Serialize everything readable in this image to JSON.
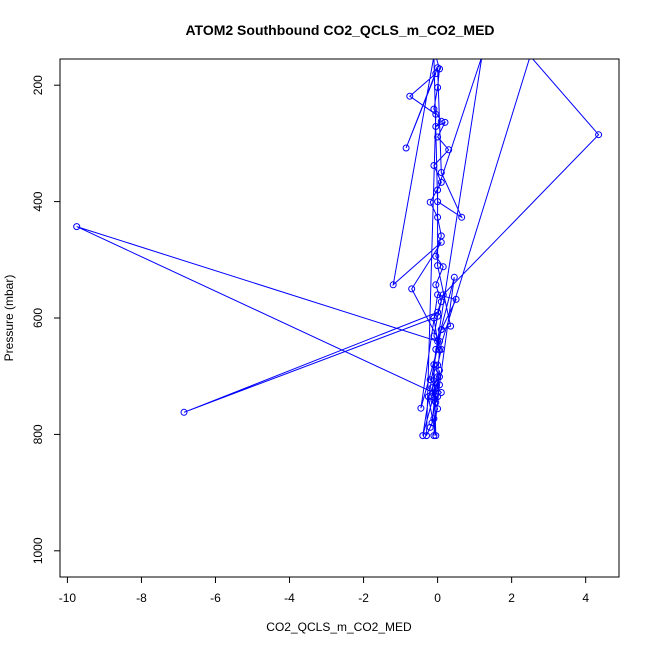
{
  "chart_data": {
    "type": "line",
    "title": "ATOM2 Southbound CO2_QCLS_m_CO2_MED",
    "xlabel": "CO2_QCLS_m_CO2_MED",
    "ylabel": "Pressure (mbar)",
    "xlim": [
      -10.2,
      4.9
    ],
    "ylim": [
      1045,
      155
    ],
    "y_reversed": true,
    "x_ticks": [
      -10,
      -8,
      -6,
      -4,
      -2,
      0,
      2,
      4
    ],
    "y_ticks": [
      200,
      400,
      600,
      800,
      1000
    ],
    "grid": false,
    "legend": "none",
    "series_color": "#0000ff",
    "markers": "open-circle",
    "points": [
      [
        -0.05,
        150
      ],
      [
        0.05,
        172
      ],
      [
        0.0,
        204
      ],
      [
        -0.1,
        241
      ],
      [
        0.1,
        262
      ],
      [
        -0.05,
        271
      ],
      [
        0.2,
        264
      ],
      [
        0.0,
        289
      ],
      [
        0.3,
        311
      ],
      [
        -0.1,
        338
      ],
      [
        0.1,
        367
      ],
      [
        -0.2,
        401
      ],
      [
        0.0,
        427
      ],
      [
        0.1,
        459
      ],
      [
        -0.05,
        494
      ],
      [
        0.15,
        512
      ],
      [
        -0.05,
        543
      ],
      [
        0.1,
        572
      ],
      [
        0.0,
        597
      ],
      [
        -0.1,
        631
      ],
      [
        0.1,
        654
      ],
      [
        0.0,
        681
      ],
      [
        -0.2,
        706
      ],
      [
        0.1,
        728
      ],
      [
        -0.1,
        741
      ],
      [
        0.0,
        756
      ],
      [
        -0.1,
        773
      ],
      [
        -0.2,
        788
      ],
      [
        -0.3,
        802
      ],
      [
        -0.05,
        250
      ],
      [
        -0.75,
        219
      ],
      [
        -0.05,
        180
      ],
      [
        -0.85,
        308
      ],
      [
        0.0,
        170
      ],
      [
        0.1,
        350
      ],
      [
        0.65,
        427
      ],
      [
        0.0,
        400
      ],
      [
        -0.1,
        150
      ],
      [
        -1.2,
        543
      ],
      [
        0.1,
        470
      ],
      [
        -0.7,
        550
      ],
      [
        0.05,
        640
      ],
      [
        -0.45,
        755
      ],
      [
        0.0,
        560
      ],
      [
        0.5,
        568
      ],
      [
        0.1,
        620
      ],
      [
        0.35,
        614
      ],
      [
        0.0,
        510
      ],
      [
        0.0,
        380
      ],
      [
        1.2,
        150
      ],
      [
        -0.4,
        802
      ],
      [
        -0.05,
        720
      ],
      [
        -0.15,
        780
      ],
      [
        0.05,
        690
      ],
      [
        0.0,
        735
      ],
      [
        -0.05,
        745
      ],
      [
        -0.15,
        720
      ],
      [
        0.05,
        701
      ],
      [
        -0.15,
        735
      ],
      [
        -0.05,
        654
      ],
      [
        0.45,
        530
      ],
      [
        0.05,
        715
      ],
      [
        -0.1,
        802
      ],
      [
        -0.05,
        730
      ],
      [
        -9.75,
        443
      ],
      [
        0.0,
        640
      ],
      [
        -0.1,
        600
      ],
      [
        -6.85,
        762
      ],
      [
        0.0,
        590
      ],
      [
        0.15,
        560
      ],
      [
        4.35,
        285
      ],
      [
        2.5,
        150
      ],
      [
        0.05,
        655
      ],
      [
        0.0,
        701
      ],
      [
        -0.25,
        735
      ],
      [
        -0.05,
        802
      ],
      [
        -0.1,
        680
      ],
      [
        0.1,
        620
      ]
    ]
  }
}
